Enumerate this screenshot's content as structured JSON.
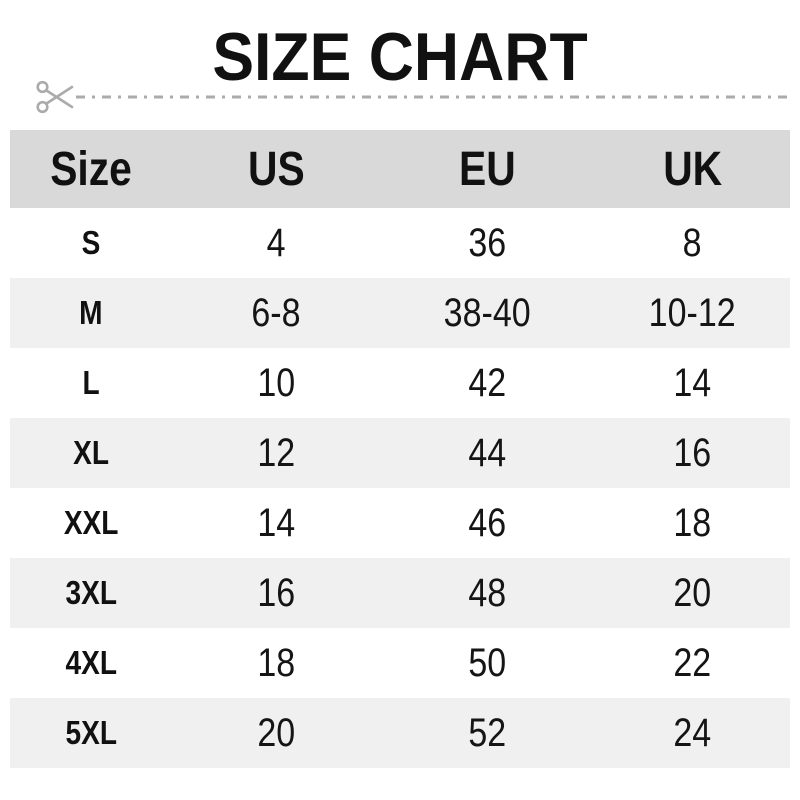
{
  "title": "SIZE CHART",
  "cutline": {
    "icon": "scissors",
    "color": "#ababab"
  },
  "colors": {
    "header_bg": "#d9d9d9",
    "stripe_bg": "#f0f0f0",
    "row_bg": "#ffffff",
    "value_text": "#151515"
  },
  "chart_data": {
    "type": "table",
    "title": "SIZE CHART",
    "columns": [
      "Size",
      "US",
      "EU",
      "UK"
    ],
    "rows": [
      [
        "S",
        "4",
        "36",
        "8"
      ],
      [
        "M",
        "6-8",
        "38-40",
        "10-12"
      ],
      [
        "L",
        "10",
        "42",
        "14"
      ],
      [
        "XL",
        "12",
        "44",
        "16"
      ],
      [
        "XXL",
        "14",
        "46",
        "18"
      ],
      [
        "3XL",
        "16",
        "48",
        "20"
      ],
      [
        "4XL",
        "18",
        "50",
        "22"
      ],
      [
        "5XL",
        "20",
        "52",
        "24"
      ]
    ]
  }
}
